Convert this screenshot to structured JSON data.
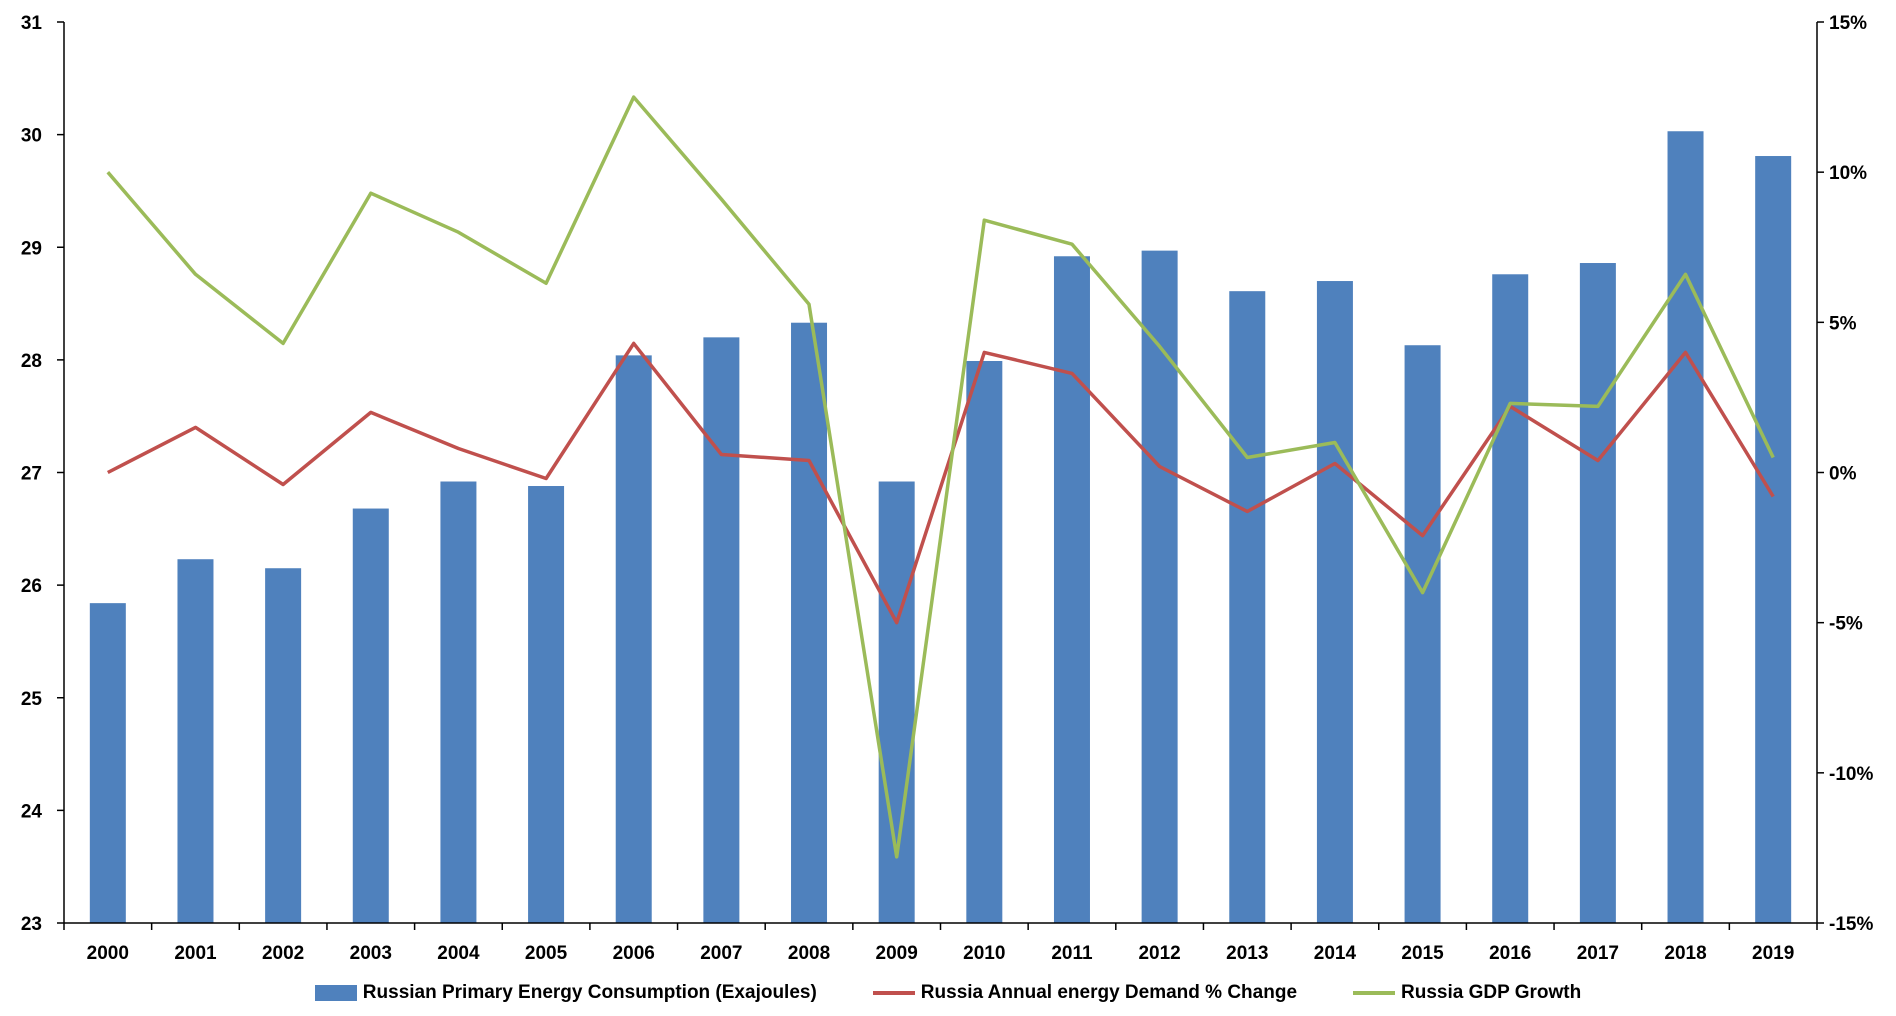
{
  "chart_data": {
    "type": "bar",
    "title": "",
    "xlabel": "",
    "ylabel": "",
    "categories": [
      "2000",
      "2001",
      "2002",
      "2003",
      "2004",
      "2005",
      "2006",
      "2007",
      "2008",
      "2009",
      "2010",
      "2011",
      "2012",
      "2013",
      "2014",
      "2015",
      "2016",
      "2017",
      "2018",
      "2019"
    ],
    "left_axis": {
      "ylim": [
        23,
        31
      ],
      "ticks": [
        "23",
        "24",
        "25",
        "26",
        "27",
        "28",
        "29",
        "30",
        "31"
      ]
    },
    "right_axis": {
      "ylim": [
        -15,
        15
      ],
      "ticks": [
        "-15%",
        "-10%",
        "-5%",
        "0%",
        "5%",
        "10%",
        "15%"
      ]
    },
    "grid": false,
    "legend_position": "bottom",
    "series": [
      {
        "name": "Russian Primary Energy Consumption (Exajoules)",
        "type": "bar",
        "axis": "left",
        "color": "#4f81bd",
        "values": [
          25.84,
          26.23,
          26.15,
          26.68,
          26.92,
          26.88,
          28.04,
          28.2,
          28.33,
          26.92,
          27.99,
          28.92,
          28.97,
          28.61,
          28.7,
          28.13,
          28.76,
          28.86,
          30.03,
          29.81
        ]
      },
      {
        "name": "Russia Annual energy Demand % Change",
        "type": "line",
        "axis": "right",
        "color": "#c0504d",
        "values": [
          0.0,
          1.5,
          -0.4,
          2.0,
          0.8,
          -0.2,
          4.3,
          0.6,
          0.4,
          -5.0,
          4.0,
          3.3,
          0.2,
          -1.3,
          0.3,
          -2.1,
          2.2,
          0.4,
          4.0,
          -0.8
        ]
      },
      {
        "name": "Russia GDP Growth",
        "type": "line",
        "axis": "right",
        "color": "#9bbb59",
        "values": [
          10.0,
          6.6,
          4.3,
          9.3,
          8.0,
          6.3,
          12.5,
          9.1,
          5.6,
          -12.8,
          8.4,
          7.6,
          4.2,
          0.5,
          1.0,
          -4.0,
          2.3,
          2.2,
          6.6,
          0.5
        ]
      }
    ]
  }
}
